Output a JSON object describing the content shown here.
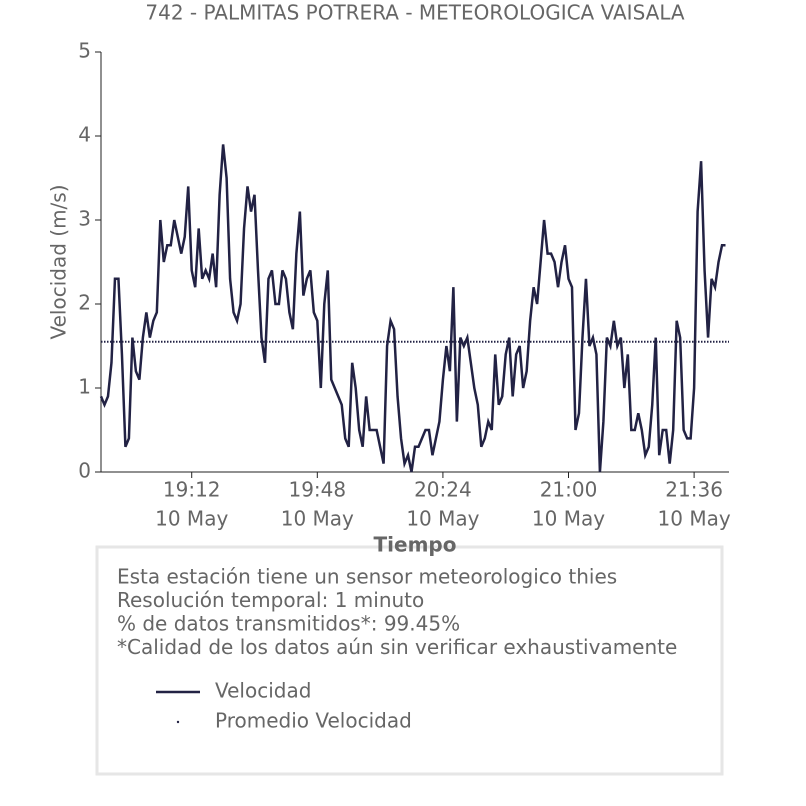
{
  "chart_data": {
    "type": "line",
    "title": "742 - PALMITAS POTRERA - METEOROLOGICA VAISALA",
    "xlabel": "Tiempo",
    "ylabel": "Velocidad (m/s)",
    "x": [
      "18:46",
      "18:47",
      "18:48",
      "18:49",
      "18:50",
      "18:51",
      "18:52",
      "18:53",
      "18:54",
      "18:55",
      "18:56",
      "18:57",
      "18:58",
      "18:59",
      "19:00",
      "19:01",
      "19:02",
      "19:03",
      "19:04",
      "19:05",
      "19:06",
      "19:07",
      "19:08",
      "19:09",
      "19:10",
      "19:11",
      "19:12",
      "19:13",
      "19:14",
      "19:15",
      "19:16",
      "19:17",
      "19:18",
      "19:19",
      "19:20",
      "19:21",
      "19:22",
      "19:23",
      "19:24",
      "19:25",
      "19:26",
      "19:27",
      "19:28",
      "19:29",
      "19:30",
      "19:31",
      "19:32",
      "19:33",
      "19:34",
      "19:35",
      "19:36",
      "19:37",
      "19:38",
      "19:39",
      "19:40",
      "19:41",
      "19:42",
      "19:43",
      "19:44",
      "19:45",
      "19:46",
      "19:47",
      "19:48",
      "19:49",
      "19:50",
      "19:51",
      "19:52",
      "19:53",
      "19:54",
      "19:55",
      "19:56",
      "19:57",
      "19:58",
      "19:59",
      "20:00",
      "20:01",
      "20:02",
      "20:03",
      "20:04",
      "20:05",
      "20:06",
      "20:07",
      "20:08",
      "20:09",
      "20:10",
      "20:11",
      "20:12",
      "20:13",
      "20:14",
      "20:15",
      "20:16",
      "20:17",
      "20:18",
      "20:19",
      "20:20",
      "20:21",
      "20:22",
      "20:23",
      "20:24",
      "20:25",
      "20:26",
      "20:27",
      "20:28",
      "20:29",
      "20:30",
      "20:31",
      "20:32",
      "20:33",
      "20:34",
      "20:35",
      "20:36",
      "20:37",
      "20:38",
      "20:39",
      "20:40",
      "20:41",
      "20:42",
      "20:43",
      "20:44",
      "20:45",
      "20:46",
      "20:47",
      "20:48",
      "20:49",
      "20:50",
      "20:51",
      "20:52",
      "20:53",
      "20:54",
      "20:55",
      "20:56",
      "20:57",
      "20:58",
      "20:59",
      "21:00",
      "21:01",
      "21:02",
      "21:03",
      "21:04",
      "21:05",
      "21:06",
      "21:07",
      "21:08",
      "21:09",
      "21:10",
      "21:11",
      "21:12",
      "21:13",
      "21:14",
      "21:15",
      "21:16",
      "21:17",
      "21:18",
      "21:19",
      "21:20",
      "21:21",
      "21:22",
      "21:23",
      "21:24",
      "21:25",
      "21:26",
      "21:27",
      "21:28",
      "21:29",
      "21:30",
      "21:31",
      "21:32",
      "21:33",
      "21:34",
      "21:35",
      "21:36",
      "21:37",
      "21:38",
      "21:39",
      "21:40",
      "21:41",
      "21:42",
      "21:43",
      "21:44",
      "21:45"
    ],
    "series": [
      {
        "name": "Velocidad",
        "color": "#222244",
        "values": [
          0.9,
          0.8,
          0.9,
          1.3,
          2.3,
          2.3,
          1.4,
          0.3,
          0.4,
          1.6,
          1.2,
          1.1,
          1.6,
          1.9,
          1.6,
          1.8,
          1.9,
          3.0,
          2.5,
          2.7,
          2.7,
          3.0,
          2.8,
          2.6,
          2.8,
          3.4,
          2.4,
          2.2,
          2.9,
          2.3,
          2.4,
          2.3,
          2.6,
          2.2,
          3.3,
          3.9,
          3.5,
          2.3,
          1.9,
          1.8,
          2.0,
          2.9,
          3.4,
          3.1,
          3.3,
          2.4,
          1.6,
          1.3,
          2.3,
          2.4,
          2.0,
          2.0,
          2.4,
          2.3,
          1.9,
          1.7,
          2.6,
          3.1,
          2.1,
          2.3,
          2.4,
          1.9,
          1.8,
          1.0,
          2.0,
          2.4,
          1.1,
          1.0,
          0.9,
          0.8,
          0.4,
          0.3,
          1.3,
          1.0,
          0.5,
          0.3,
          0.9,
          0.5,
          0.5,
          0.5,
          0.3,
          0.1,
          1.5,
          1.8,
          1.7,
          0.9,
          0.4,
          0.1,
          0.2,
          0.0,
          0.3,
          0.3,
          0.4,
          0.5,
          0.5,
          0.2,
          0.4,
          0.6,
          1.1,
          1.5,
          1.2,
          2.2,
          0.6,
          1.6,
          1.5,
          1.6,
          1.3,
          1.0,
          0.8,
          0.3,
          0.4,
          0.6,
          0.5,
          1.4,
          0.8,
          0.9,
          1.4,
          1.6,
          0.9,
          1.4,
          1.5,
          1.0,
          1.2,
          1.8,
          2.2,
          2.0,
          2.5,
          3.0,
          2.6,
          2.6,
          2.5,
          2.2,
          2.5,
          2.7,
          2.3,
          2.2,
          0.5,
          0.7,
          1.6,
          2.3,
          1.5,
          1.6,
          1.4,
          0.0,
          0.6,
          1.6,
          1.5,
          1.8,
          1.5,
          1.6,
          1.0,
          1.4,
          0.5,
          0.5,
          0.7,
          0.5,
          0.2,
          0.3,
          0.8,
          1.6,
          0.2,
          0.5,
          0.5,
          0.1,
          0.5,
          1.8,
          1.6,
          0.5,
          0.4,
          0.4,
          1.0,
          3.1,
          3.7,
          2.4,
          1.6,
          2.3,
          2.2,
          2.5,
          2.7,
          2.7
        ]
      },
      {
        "name": "Promedio Velocidad",
        "color": "#222244",
        "style": "dotted",
        "value": 1.55
      }
    ],
    "xlim": [
      "18:46",
      "21:46"
    ],
    "xticks": [
      {
        "value": "19:12",
        "label": "19:12",
        "sublabel": "10 May"
      },
      {
        "value": "19:48",
        "label": "19:48",
        "sublabel": "10 May"
      },
      {
        "value": "20:24",
        "label": "20:24",
        "sublabel": "10 May"
      },
      {
        "value": "21:00",
        "label": "21:00",
        "sublabel": "10 May"
      },
      {
        "value": "21:36",
        "label": "21:36",
        "sublabel": "10 May"
      }
    ],
    "ylim": [
      0,
      5
    ],
    "yticks": [
      0,
      1,
      2,
      3,
      4,
      5
    ],
    "info": [
      "Esta estación tiene un sensor meteorologico thies",
      "Resolución temporal: 1 minuto",
      "% de datos transmitidos*: 99.45%",
      "*Calidad de los datos aún sin verificar exhaustivamente"
    ]
  }
}
